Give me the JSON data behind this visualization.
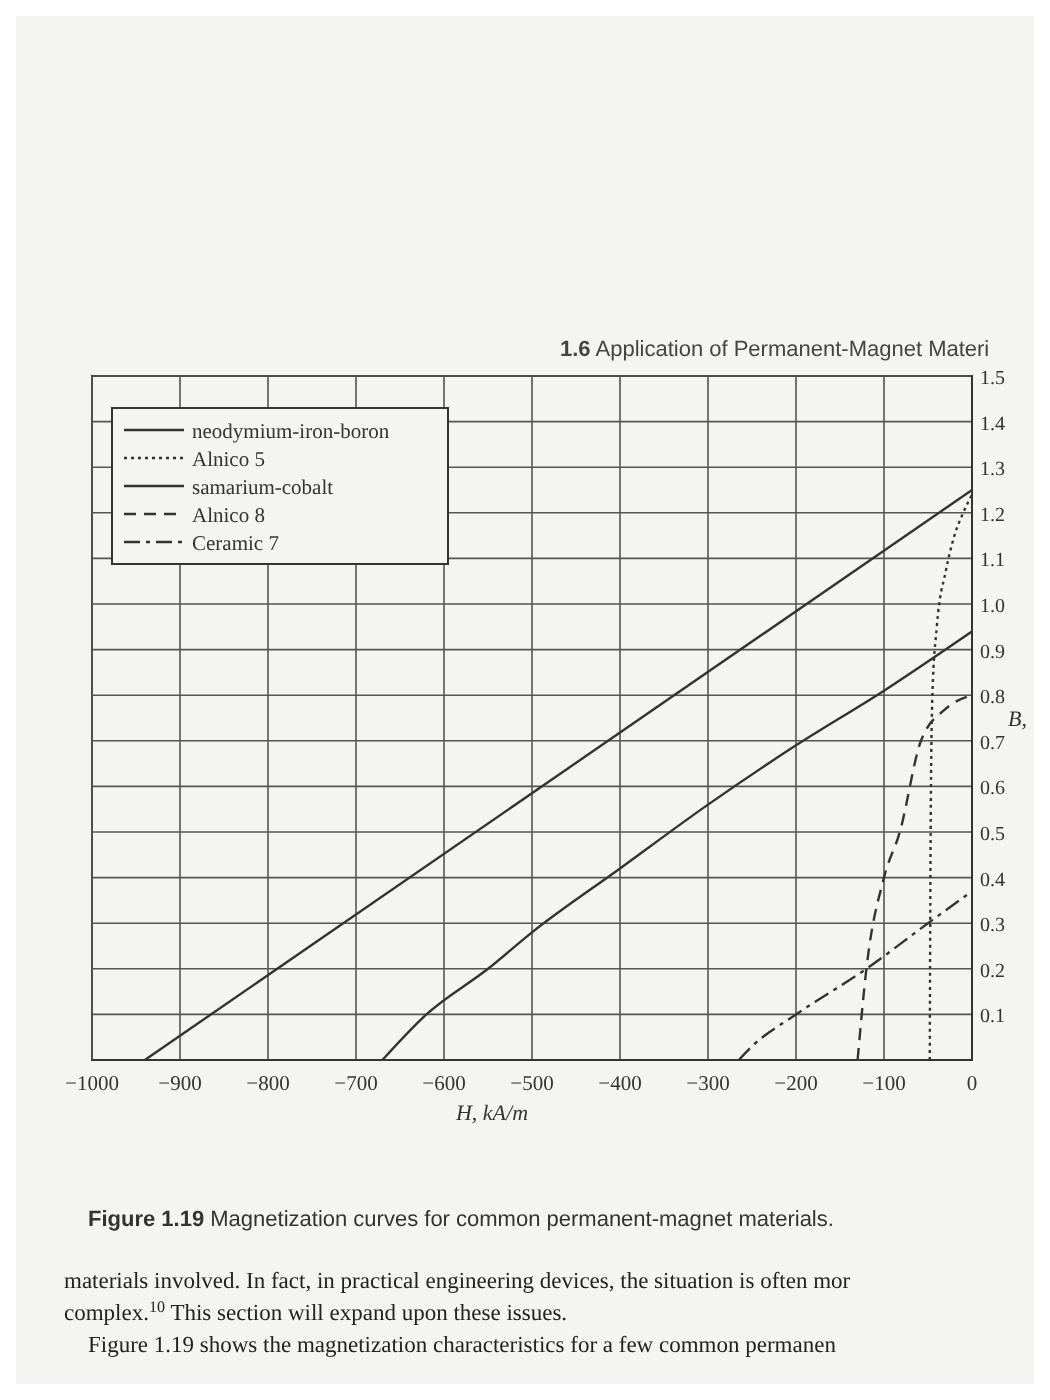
{
  "chart_data": {
    "type": "line",
    "title": "Figure 1.19 Magnetization curves for common permanent-magnet materials.",
    "xlabel": "H, kA/m",
    "ylabel": "B,",
    "annotations": [
      "1.6 Application of Permanent-Magnet Materi",
      "materials involved. In fact, in practical engineering devices, the situation is often mor",
      "complex.$^{10}$ This section will expand upon these issues.",
      "Figure 1.19 shows the magnetization characteristics for a few common permanen"
    ],
    "xlim": [
      -1000,
      0
    ],
    "ylim": [
      0,
      1.5
    ],
    "xticks": [
      -1000,
      -900,
      -800,
      -700,
      -600,
      -500,
      -400,
      -300,
      -200,
      -100,
      0
    ],
    "yticks": [
      0.1,
      0.2,
      0.3,
      0.4,
      0.5,
      0.6,
      0.7,
      0.8,
      0.9,
      {
        "value": 1,
        "label": "1.0"
      },
      1.1,
      1.2,
      1.3,
      1.4,
      1.5
    ],
    "grid": true,
    "legend": "top left",
    "series": [
      {
        "name": "neodymium-iron-boron",
        "color": "#333333",
        "line_style": "solid",
        "x": [
          -940,
          0
        ],
        "values": [
          0,
          1.25
        ]
      },
      {
        "name": "Alnico 5",
        "color": "#333333",
        "line_style": "dotted",
        "x": [
          -48,
          -47,
          -45,
          -40,
          -30,
          -20,
          -10,
          0
        ],
        "values": [
          0,
          0.5,
          0.8,
          0.95,
          1.07,
          1.15,
          1.2,
          1.24
        ]
      },
      {
        "name": "samarium-cobalt",
        "color": "#333333",
        "line_style": "solid",
        "x": [
          -670,
          -620,
          -550,
          -500,
          -400,
          -300,
          -200,
          -100,
          0
        ],
        "values": [
          0,
          0.1,
          0.2,
          0.28,
          0.42,
          0.56,
          0.69,
          0.81,
          0.94
        ]
      },
      {
        "name": "Alnico 8",
        "color": "#333333",
        "line_style": "dashed",
        "x": [
          -130,
          -120,
          -100,
          -82,
          -58,
          -30,
          0
        ],
        "values": [
          0,
          0.2,
          0.4,
          0.5,
          0.7,
          0.77,
          0.8
        ]
      },
      {
        "name": "Ceramic 7",
        "color": "#333333",
        "line_style": "dashdot",
        "x": [
          -265,
          -250,
          -200,
          -120,
          -50,
          0
        ],
        "values": [
          0,
          0.03,
          0.1,
          0.2,
          0.3,
          0.37
        ]
      }
    ]
  }
}
